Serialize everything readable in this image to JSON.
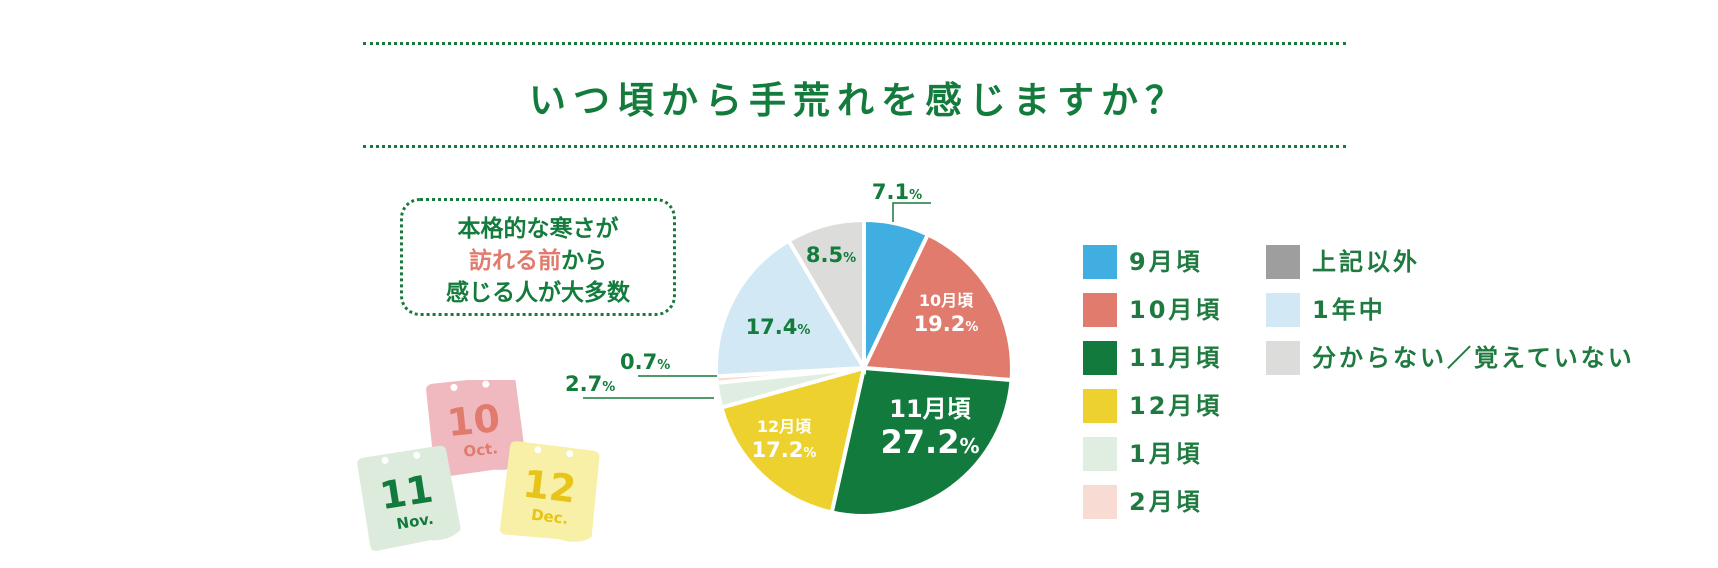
{
  "chart_data": {
    "type": "pie",
    "title": "いつ頃から手荒れを感じますか？",
    "unit": "%",
    "slices": [
      {
        "label": "9月頃",
        "value": 7.1,
        "color": "#40aee0"
      },
      {
        "label": "10月頃",
        "value": 19.2,
        "color": "#e07b6e"
      },
      {
        "label": "11月頃",
        "value": 27.2,
        "color": "#127a3c"
      },
      {
        "label": "12月頃",
        "value": 17.2,
        "color": "#edd22f"
      },
      {
        "label": "1月頃",
        "value": 2.7,
        "color": "#e0ede1"
      },
      {
        "label": "2月頃",
        "value": 0.7,
        "color": "#f8dbd3"
      },
      {
        "label": "1年中",
        "value": 17.4,
        "color": "#d2e9f5"
      },
      {
        "label": "分からない／覚えていない",
        "value": 8.5,
        "color": "#dcdcdb"
      },
      {
        "label": "上記以外",
        "value": 0,
        "color": "#9e9e9e"
      }
    ],
    "data_labels": [
      {
        "text": "7.1",
        "unit": "%"
      },
      {
        "name": "10月頃",
        "text": "19.2",
        "unit": "%"
      },
      {
        "name": "11月頃",
        "text": "27.2",
        "unit": "%"
      },
      {
        "name": "12月頃",
        "text": "17.2",
        "unit": "%"
      },
      {
        "text": "2.7",
        "unit": "%"
      },
      {
        "text": "0.7",
        "unit": "%"
      },
      {
        "text": "17.4",
        "unit": "%"
      },
      {
        "text": "8.5",
        "unit": "%"
      }
    ],
    "legend": [
      "9月頃",
      "10月頃",
      "11月頃",
      "12月頃",
      "1月頃",
      "2月頃",
      "上記以外",
      "1年中",
      "分からない／覚えていない"
    ]
  },
  "callout": {
    "line1": "本格的な寒さが",
    "line2_em": "訪れる前",
    "line2_rest": "から",
    "line3": "感じる人が大多数"
  },
  "illustration": {
    "cards": [
      {
        "number": "10",
        "month": "Oct.",
        "color": "#f0b9c0",
        "text_color": "#e07b6e"
      },
      {
        "number": "11",
        "month": "Nov.",
        "color": "#dcebdc",
        "text_color": "#127a3c"
      },
      {
        "number": "12",
        "month": "Dec.",
        "color": "#f8f0a6",
        "text_color": "#e8c318"
      }
    ]
  }
}
